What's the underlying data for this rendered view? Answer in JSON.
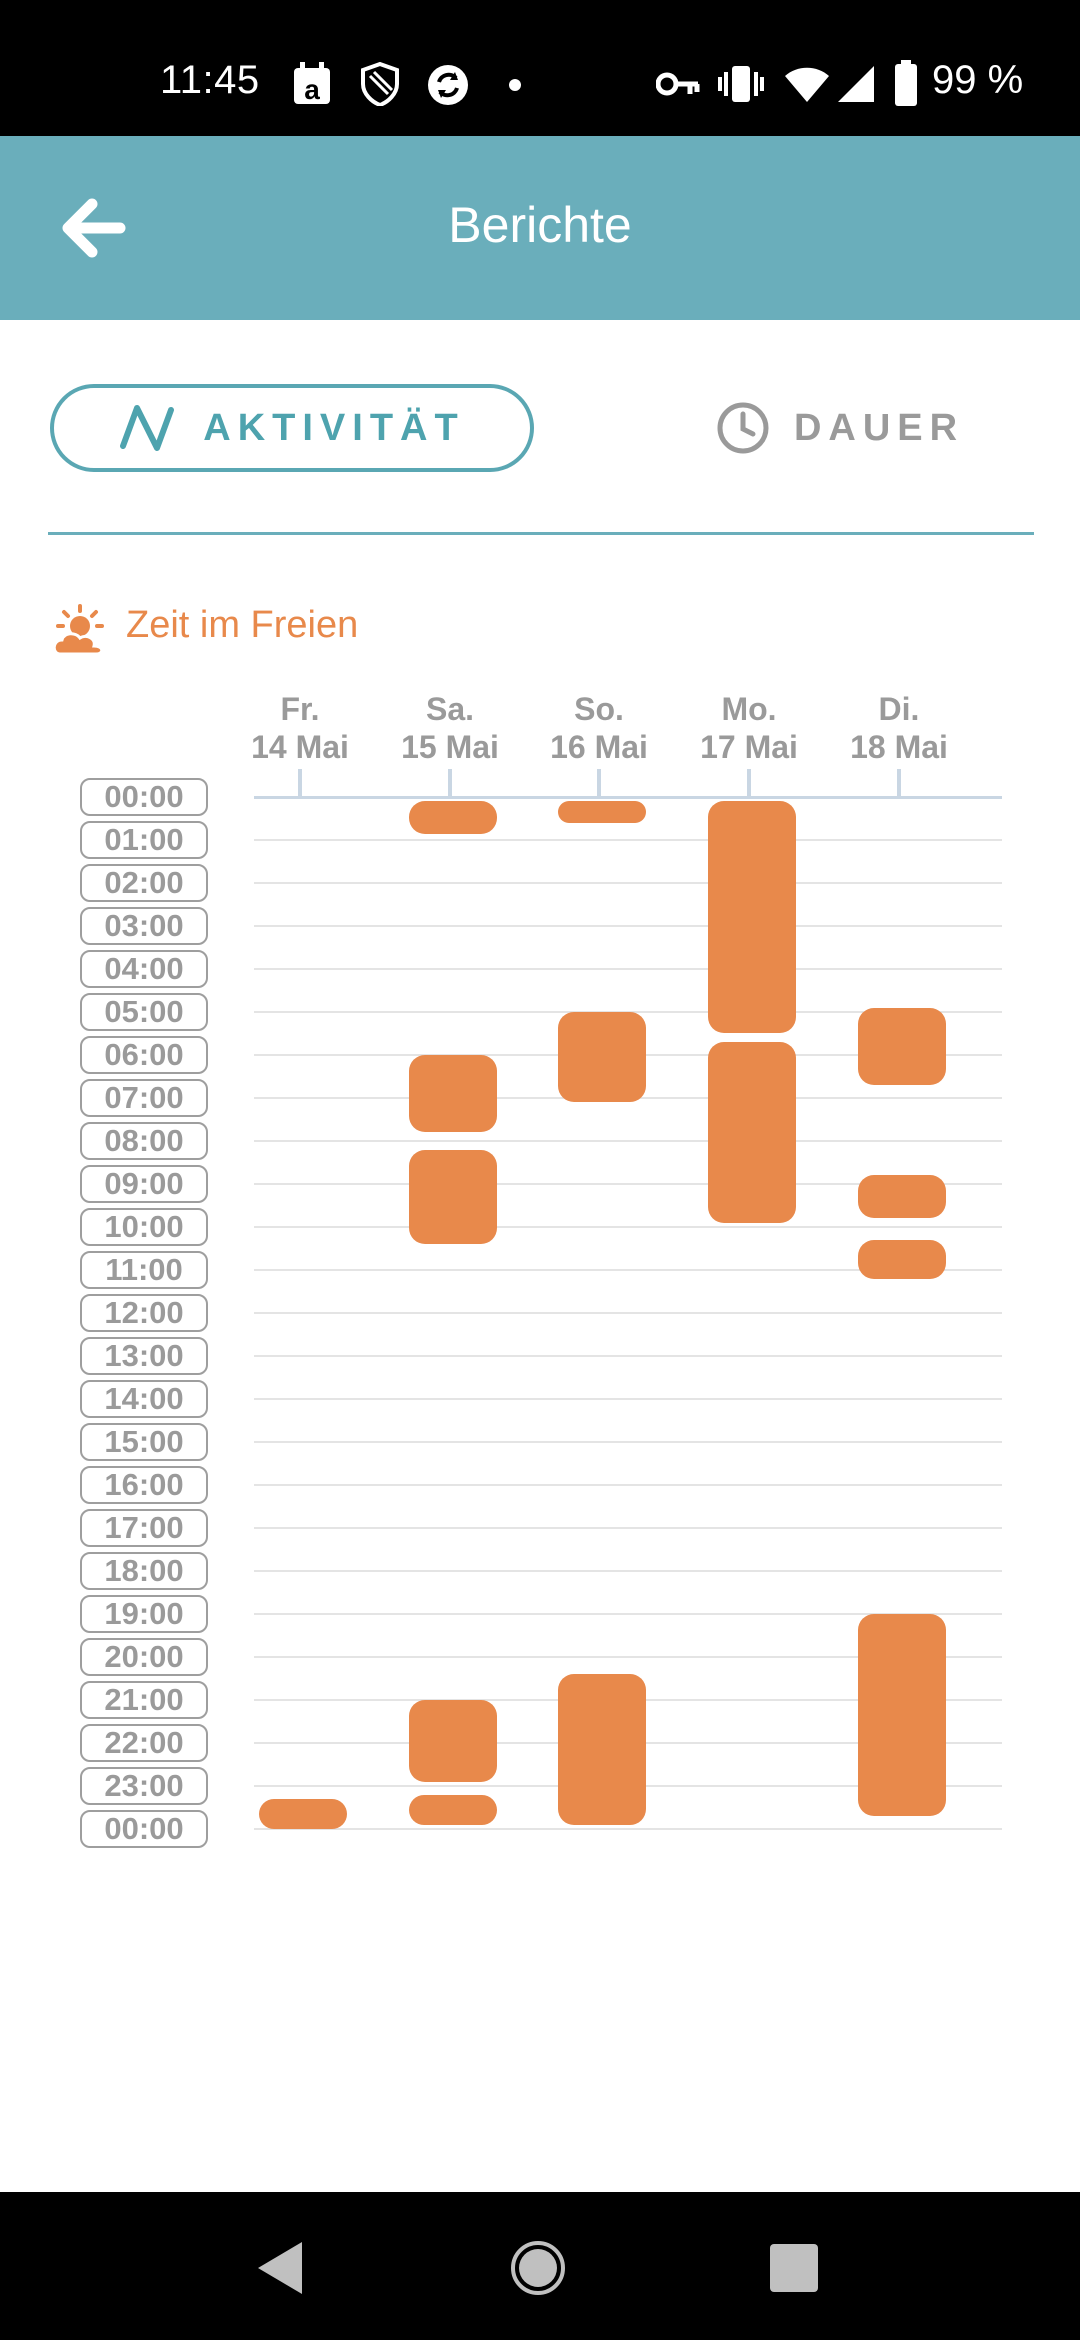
{
  "status_bar": {
    "time": "11:45",
    "battery": "99 %",
    "icons": [
      "calendar-a-icon",
      "shield-icon",
      "sync-icon",
      "dot-icon",
      "vpn-key-icon",
      "vibrate-icon",
      "wifi-icon",
      "signal-icon",
      "battery-icon"
    ]
  },
  "header": {
    "title": "Berichte",
    "back_icon": "arrow-left-icon",
    "background": "#6aaebb"
  },
  "tabs": [
    {
      "label": "AKTIVITÄT",
      "icon": "activity-wave-icon",
      "selected": true
    },
    {
      "label": "DAUER",
      "icon": "clock-icon",
      "selected": false
    }
  ],
  "section": {
    "title": "Zeit im Freien",
    "icon": "sun-cloud-icon",
    "color": "#e8894b"
  },
  "chart_data": {
    "type": "timeline",
    "days": [
      {
        "weekday": "Fr.",
        "date": "14 Mai"
      },
      {
        "weekday": "Sa.",
        "date": "15 Mai"
      },
      {
        "weekday": "So.",
        "date": "16 Mai"
      },
      {
        "weekday": "Mo.",
        "date": "17 Mai"
      },
      {
        "weekday": "Di.",
        "date": "18 Mai"
      }
    ],
    "hours": [
      "00:00",
      "01:00",
      "02:00",
      "03:00",
      "04:00",
      "05:00",
      "06:00",
      "07:00",
      "08:00",
      "09:00",
      "10:00",
      "11:00",
      "12:00",
      "13:00",
      "14:00",
      "15:00",
      "16:00",
      "17:00",
      "18:00",
      "19:00",
      "20:00",
      "21:00",
      "22:00",
      "23:00",
      "00:00"
    ],
    "bar_color": "#e8894b",
    "intervals": [
      {
        "day": 0,
        "start": 23.3,
        "end": 24.0
      },
      {
        "day": 1,
        "start": 0.1,
        "end": 0.85
      },
      {
        "day": 1,
        "start": 6.0,
        "end": 7.8
      },
      {
        "day": 1,
        "start": 8.2,
        "end": 10.4
      },
      {
        "day": 1,
        "start": 21.0,
        "end": 22.9
      },
      {
        "day": 1,
        "start": 23.2,
        "end": 23.9
      },
      {
        "day": 2,
        "start": 0.1,
        "end": 0.6
      },
      {
        "day": 2,
        "start": 5.0,
        "end": 7.1
      },
      {
        "day": 2,
        "start": 20.4,
        "end": 23.9
      },
      {
        "day": 3,
        "start": 0.1,
        "end": 5.5
      },
      {
        "day": 3,
        "start": 5.7,
        "end": 9.9
      },
      {
        "day": 4,
        "start": 4.9,
        "end": 6.7
      },
      {
        "day": 4,
        "start": 8.8,
        "end": 9.8
      },
      {
        "day": 4,
        "start": 10.3,
        "end": 11.2
      },
      {
        "day": 4,
        "start": 19.0,
        "end": 23.7
      }
    ]
  }
}
